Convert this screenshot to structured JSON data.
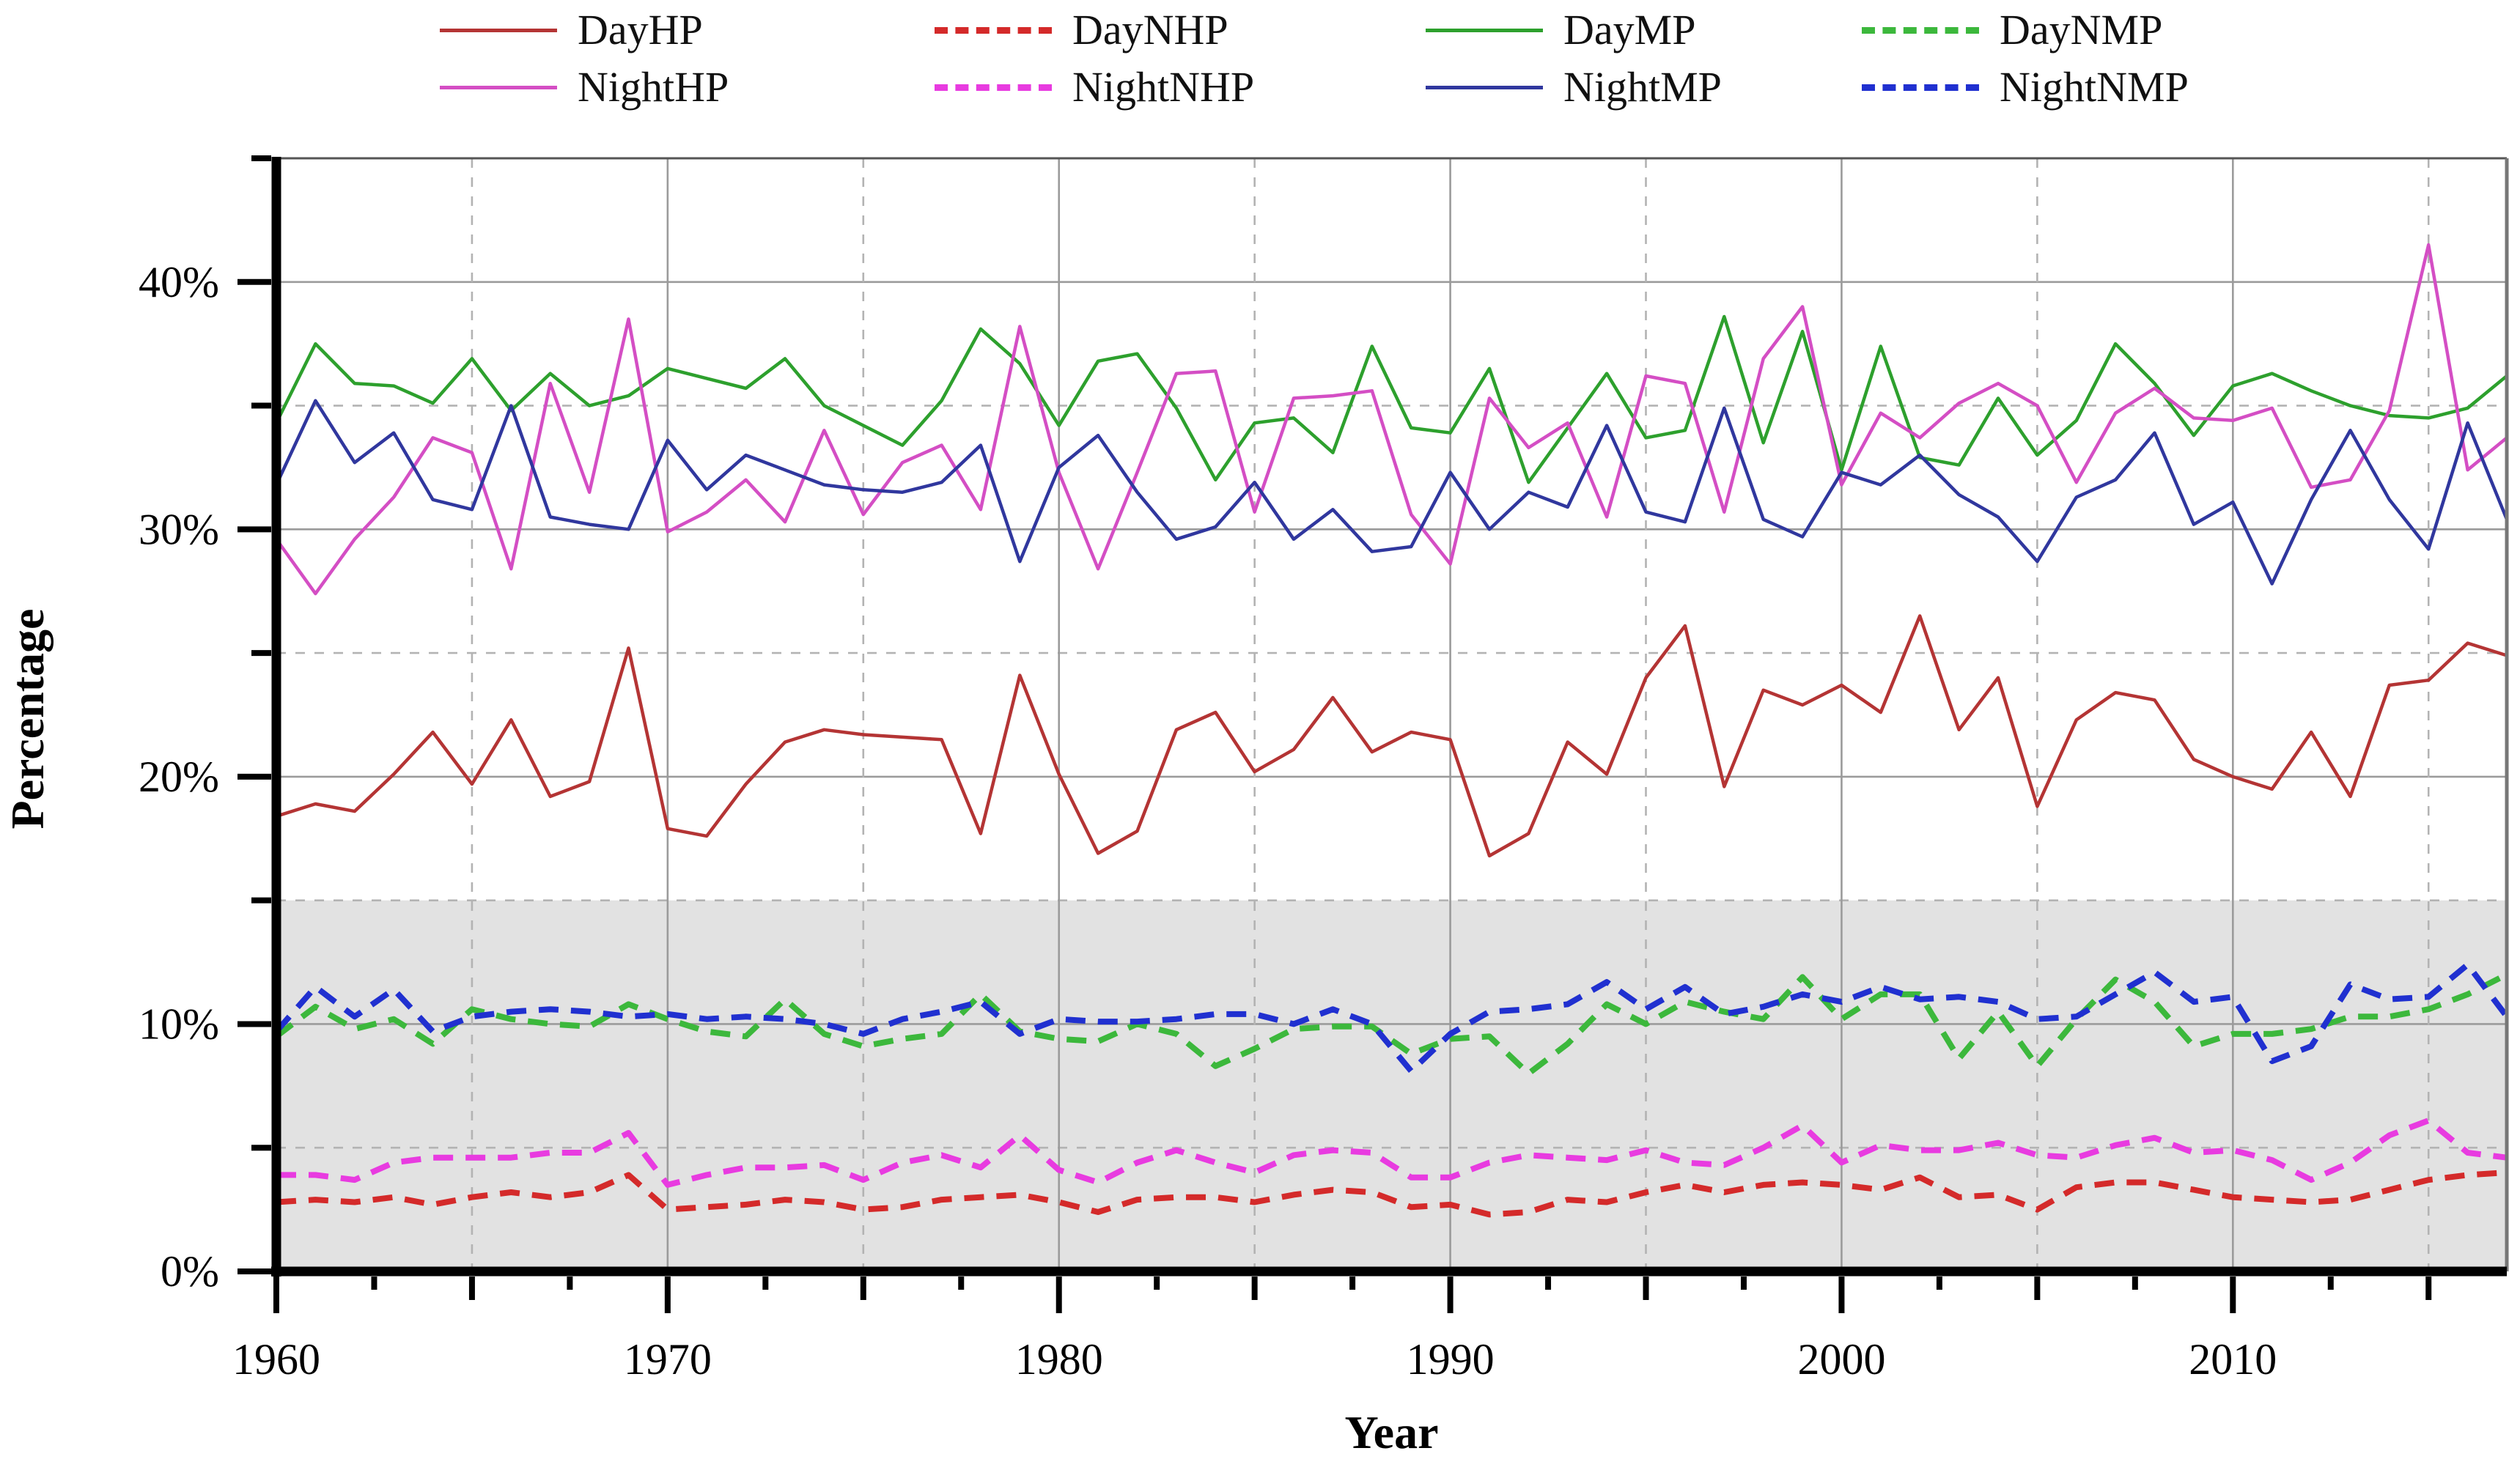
{
  "figure": {
    "background": "#ffffff",
    "plot_border_color": "#666666",
    "band_color": "#e2e2e2",
    "grid_solid_color": "#9b9b9b",
    "grid_dashed_color": "#b3b3b3"
  },
  "legend": {
    "items": [
      {
        "label": "DayHP",
        "color": "#b43434",
        "dash": false
      },
      {
        "label": "DayNHP",
        "color": "#d42a2a",
        "dash": true
      },
      {
        "label": "DayMP",
        "color": "#2da02d",
        "dash": false
      },
      {
        "label": "DayNMP",
        "color": "#3cb83c",
        "dash": true
      },
      {
        "label": "NightHP",
        "color": "#d44ec4",
        "dash": false
      },
      {
        "label": "NightNHP",
        "color": "#e83be0",
        "dash": true
      },
      {
        "label": "NightMP",
        "color": "#30379e",
        "dash": false
      },
      {
        "label": "NightNMP",
        "color": "#2030d0",
        "dash": true
      }
    ]
  },
  "axes": {
    "x_label": "Year",
    "y_label": "Percentage",
    "x_tick_labels": [
      "1960",
      "1970",
      "1980",
      "1990",
      "2000",
      "2010"
    ],
    "y_tick_labels": [
      "0%",
      "10%",
      "20%",
      "30%",
      "40%"
    ]
  },
  "chart_data": {
    "type": "line",
    "title": "",
    "xlabel": "Year",
    "ylabel": "Percentage",
    "xlim": [
      1960,
      2017
    ],
    "ylim": [
      0,
      45
    ],
    "y_major_ticks": [
      0,
      10,
      20,
      30,
      40
    ],
    "y_minor_tick_step": 5,
    "x_major_ticks": [
      1960,
      1970,
      1980,
      1990,
      2000,
      2010
    ],
    "x_minor_tick_step": 2.5,
    "grid": true,
    "legend_position": "top",
    "shaded_band": {
      "from": 0,
      "to": 15,
      "color": "#e2e2e2"
    },
    "x_years": [
      1960,
      1961,
      1962,
      1963,
      1964,
      1965,
      1966,
      1967,
      1968,
      1969,
      1970,
      1971,
      1972,
      1973,
      1974,
      1975,
      1976,
      1977,
      1978,
      1979,
      1980,
      1981,
      1982,
      1983,
      1984,
      1985,
      1986,
      1987,
      1988,
      1989,
      1990,
      1991,
      1992,
      1993,
      1994,
      1995,
      1996,
      1997,
      1998,
      1999,
      2000,
      2001,
      2002,
      2003,
      2004,
      2005,
      2006,
      2007,
      2008,
      2009,
      2010,
      2011,
      2012,
      2013,
      2014,
      2015,
      2016,
      2017
    ],
    "series": [
      {
        "name": "DayHP",
        "color": "#b43434",
        "dash": false,
        "values": [
          18.4,
          18.9,
          18.6,
          20.1,
          21.8,
          19.7,
          22.3,
          19.2,
          19.8,
          25.2,
          17.9,
          17.6,
          19.7,
          21.4,
          21.9,
          21.7,
          21.6,
          21.5,
          17.7,
          24.1,
          20.1,
          16.9,
          17.8,
          21.9,
          22.6,
          20.2,
          21.1,
          23.2,
          21.0,
          21.8,
          21.5,
          16.8,
          17.7,
          21.4,
          20.1,
          24.0,
          26.1,
          19.6,
          23.5,
          22.9,
          23.7,
          22.6,
          26.5,
          21.9,
          24.0,
          18.8,
          22.3,
          23.4,
          23.1,
          20.7,
          20.0,
          19.5,
          21.8,
          19.2,
          23.7,
          23.9,
          25.4,
          24.9
        ]
      },
      {
        "name": "DayNHP",
        "color": "#d42a2a",
        "dash": true,
        "values": [
          2.8,
          2.9,
          2.8,
          3.0,
          2.7,
          3.0,
          3.2,
          3.0,
          3.2,
          3.9,
          2.5,
          2.6,
          2.7,
          2.9,
          2.8,
          2.5,
          2.6,
          2.9,
          3.0,
          3.1,
          2.8,
          2.4,
          2.9,
          3.0,
          3.0,
          2.8,
          3.1,
          3.3,
          3.2,
          2.6,
          2.7,
          2.3,
          2.4,
          2.9,
          2.8,
          3.2,
          3.5,
          3.2,
          3.5,
          3.6,
          3.5,
          3.3,
          3.8,
          3.0,
          3.1,
          2.5,
          3.4,
          3.6,
          3.6,
          3.3,
          3.0,
          2.9,
          2.8,
          2.9,
          3.3,
          3.7,
          3.9,
          4.0
        ]
      },
      {
        "name": "DayMP",
        "color": "#2da02d",
        "dash": false,
        "values": [
          34.3,
          37.5,
          35.9,
          35.8,
          35.1,
          36.9,
          34.8,
          36.3,
          35.0,
          35.4,
          36.5,
          36.1,
          35.7,
          36.9,
          35.0,
          34.2,
          33.4,
          35.2,
          38.1,
          36.7,
          34.2,
          36.8,
          37.1,
          34.9,
          32.0,
          34.3,
          34.5,
          33.1,
          37.4,
          34.1,
          33.9,
          36.5,
          31.9,
          34.1,
          36.3,
          33.7,
          34.0,
          38.6,
          33.5,
          38.0,
          32.4,
          37.4,
          32.9,
          32.6,
          35.3,
          33.0,
          34.4,
          37.5,
          35.9,
          33.8,
          35.8,
          36.3,
          35.6,
          35.0,
          34.6,
          34.5,
          34.9,
          36.2
        ]
      },
      {
        "name": "DayNMP",
        "color": "#3cb83c",
        "dash": true,
        "values": [
          9.5,
          10.7,
          9.8,
          10.2,
          9.2,
          10.6,
          10.2,
          10.0,
          9.9,
          10.8,
          10.2,
          9.7,
          9.5,
          11.0,
          9.6,
          9.1,
          9.4,
          9.6,
          11.2,
          9.7,
          9.4,
          9.3,
          10.0,
          9.6,
          8.3,
          9.0,
          9.8,
          9.9,
          9.9,
          8.8,
          9.4,
          9.5,
          8.0,
          9.2,
          10.8,
          10.0,
          10.9,
          10.5,
          10.2,
          11.9,
          10.2,
          11.2,
          11.2,
          8.6,
          10.5,
          8.3,
          10.2,
          11.8,
          10.9,
          9.1,
          9.6,
          9.6,
          9.8,
          10.3,
          10.3,
          10.6,
          11.2,
          12.0
        ]
      },
      {
        "name": "NightHP",
        "color": "#d44ec4",
        "dash": false,
        "values": [
          29.6,
          27.4,
          29.6,
          31.3,
          33.7,
          33.1,
          28.4,
          35.9,
          31.5,
          38.5,
          29.9,
          30.7,
          32.0,
          30.3,
          34.0,
          30.6,
          32.7,
          33.4,
          30.8,
          38.2,
          32.3,
          28.4,
          32.3,
          36.3,
          36.4,
          30.7,
          35.3,
          35.4,
          35.6,
          30.6,
          28.6,
          35.3,
          33.3,
          34.3,
          30.5,
          36.2,
          35.9,
          30.7,
          36.9,
          39.0,
          31.8,
          34.7,
          33.7,
          35.1,
          35.9,
          35.0,
          31.9,
          34.7,
          35.7,
          34.5,
          34.4,
          34.9,
          31.7,
          32.0,
          34.8,
          41.5,
          32.4,
          33.7
        ]
      },
      {
        "name": "NightNHP",
        "color": "#e83be0",
        "dash": true,
        "values": [
          3.9,
          3.9,
          3.7,
          4.4,
          4.6,
          4.6,
          4.6,
          4.8,
          4.8,
          5.6,
          3.5,
          3.9,
          4.2,
          4.2,
          4.3,
          3.7,
          4.4,
          4.7,
          4.2,
          5.5,
          4.1,
          3.6,
          4.4,
          4.9,
          4.4,
          4.0,
          4.7,
          4.9,
          4.8,
          3.8,
          3.8,
          4.4,
          4.7,
          4.6,
          4.5,
          4.9,
          4.4,
          4.3,
          5.0,
          5.9,
          4.4,
          5.1,
          4.9,
          4.9,
          5.2,
          4.7,
          4.6,
          5.1,
          5.4,
          4.8,
          4.9,
          4.5,
          3.7,
          4.4,
          5.5,
          6.1,
          4.8,
          4.6
        ]
      },
      {
        "name": "NightMP",
        "color": "#30379e",
        "dash": false,
        "values": [
          31.8,
          35.2,
          32.7,
          33.9,
          31.2,
          30.8,
          35.0,
          30.5,
          30.2,
          30.0,
          33.6,
          31.6,
          33.0,
          32.4,
          31.8,
          31.6,
          31.5,
          31.9,
          33.4,
          28.7,
          32.5,
          33.8,
          31.5,
          29.6,
          30.1,
          31.9,
          29.6,
          30.8,
          29.1,
          29.3,
          32.3,
          30.0,
          31.5,
          30.9,
          34.2,
          30.7,
          30.3,
          34.9,
          30.4,
          29.7,
          32.3,
          31.8,
          33.0,
          31.4,
          30.5,
          28.7,
          31.3,
          32.0,
          33.9,
          30.2,
          31.1,
          27.8,
          31.2,
          34.0,
          31.2,
          29.2,
          34.3,
          30.4
        ]
      },
      {
        "name": "NightNMP",
        "color": "#2030d0",
        "dash": true,
        "values": [
          9.7,
          11.5,
          10.3,
          11.4,
          9.7,
          10.3,
          10.5,
          10.6,
          10.5,
          10.3,
          10.4,
          10.2,
          10.3,
          10.2,
          10.0,
          9.6,
          10.2,
          10.5,
          10.9,
          9.6,
          10.2,
          10.1,
          10.1,
          10.2,
          10.4,
          10.4,
          10.0,
          10.6,
          10.0,
          8.1,
          9.6,
          10.5,
          10.6,
          10.8,
          11.7,
          10.6,
          11.5,
          10.4,
          10.7,
          11.2,
          10.9,
          11.5,
          11.0,
          11.1,
          10.9,
          10.2,
          10.3,
          11.2,
          12.1,
          10.9,
          11.1,
          8.5,
          9.1,
          11.6,
          11.0,
          11.1,
          12.4,
          10.3
        ]
      }
    ]
  }
}
